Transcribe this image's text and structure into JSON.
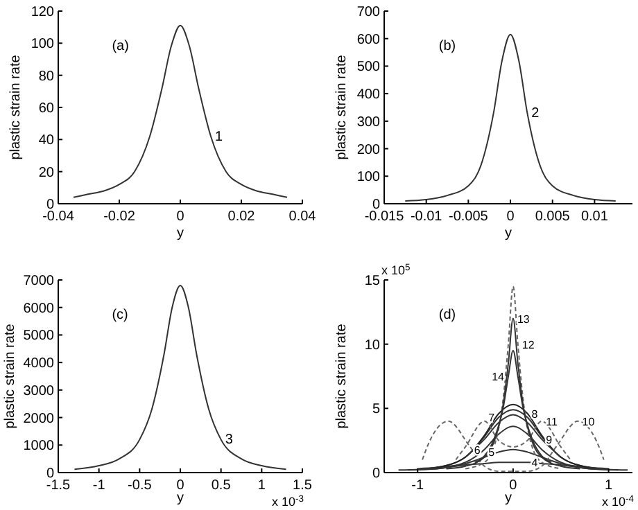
{
  "chart_data": [
    {
      "type": "line",
      "title": "(a)",
      "xlabel": "y",
      "ylabel": "plastic strain rate",
      "xlim": [
        -0.04,
        0.04
      ],
      "xticks": [
        -0.04,
        -0.02,
        0,
        0.02,
        0.04
      ],
      "ylim": [
        0,
        120
      ],
      "yticks": [
        0,
        20,
        40,
        60,
        80,
        100,
        120
      ],
      "series": [
        {
          "color": "#333333",
          "x": [
            -0.035,
            -0.03,
            -0.025,
            -0.02,
            -0.015,
            -0.01,
            -0.006,
            -0.003,
            0,
            0.003,
            0.006,
            0.01,
            0.015,
            0.02,
            0.025,
            0.03,
            0.035
          ],
          "values": [
            4,
            6,
            8,
            12,
            20,
            42,
            72,
            98,
            111,
            98,
            72,
            42,
            20,
            12,
            8,
            6,
            4
          ]
        }
      ],
      "annotations": [
        {
          "text": "1",
          "x": 0.01,
          "y": 42
        }
      ]
    },
    {
      "type": "line",
      "title": "(b)",
      "xlabel": "y",
      "ylabel": "plastic strain rate",
      "xlim": [
        -0.015,
        0.0145
      ],
      "xticks": [
        -0.015,
        -0.01,
        -0.005,
        0,
        0.005,
        0.01
      ],
      "ylim": [
        0,
        700
      ],
      "yticks": [
        0,
        100,
        200,
        300,
        400,
        500,
        600,
        700
      ],
      "series": [
        {
          "color": "#333333",
          "x": [
            -0.0125,
            -0.01,
            -0.0075,
            -0.005,
            -0.0035,
            -0.002,
            -0.001,
            0,
            0.001,
            0.002,
            0.0035,
            0.005,
            0.0075,
            0.01,
            0.0125
          ],
          "values": [
            10,
            15,
            30,
            65,
            140,
            330,
            520,
            615,
            520,
            330,
            140,
            65,
            30,
            15,
            10
          ]
        }
      ],
      "annotations": [
        {
          "text": "2",
          "x": 0.002,
          "y": 330
        }
      ]
    },
    {
      "type": "line",
      "title": "(c)",
      "xlabel": "y",
      "ylabel": "plastic strain rate",
      "xlim": [
        -1.5,
        1.5
      ],
      "xticks": [
        -1.5,
        -1,
        -0.5,
        0,
        0.5,
        1,
        1.5
      ],
      "ylim": [
        0,
        7000
      ],
      "yticks": [
        0,
        1000,
        2000,
        3000,
        4000,
        5000,
        6000,
        7000
      ],
      "series": [
        {
          "color": "#333333",
          "x": [
            -1.3,
            -1,
            -0.75,
            -0.5,
            -0.35,
            -0.2,
            -0.1,
            0,
            0.1,
            0.2,
            0.35,
            0.5,
            0.75,
            1,
            1.3
          ],
          "values": [
            120,
            250,
            500,
            1200,
            2300,
            4300,
            6000,
            6800,
            6000,
            4300,
            2300,
            1200,
            500,
            250,
            120
          ]
        }
      ],
      "annotations": [
        "x 10$^{-3}$",
        {
          "text": "3",
          "x": 0.5,
          "y": 1200
        }
      ]
    },
    {
      "type": "line",
      "title": "(d)",
      "xlabel": "y",
      "ylabel": "plastic strain rate",
      "xlim": [
        -1.35,
        1.25
      ],
      "xticks": [
        -1,
        0,
        1
      ],
      "ylim": [
        0,
        15
      ],
      "yticks": [
        0,
        5,
        10,
        15
      ],
      "series": [
        {
          "color": "#333333",
          "line_style": "solid",
          "x": [
            -1.2,
            -0.8,
            -0.5,
            -0.3,
            -0.15,
            0,
            0.15,
            0.3,
            0.5,
            0.8,
            1.2
          ],
          "values": [
            0.2,
            0.3,
            0.6,
            0.7,
            0.8,
            0.8,
            0.8,
            0.7,
            0.6,
            0.3,
            0.2
          ]
        },
        {
          "color": "#333333",
          "line_style": "solid",
          "x": [
            -1,
            -0.8,
            -0.5,
            -0.3,
            -0.15,
            0,
            0.15,
            0.3,
            0.5,
            0.8,
            1
          ],
          "values": [
            0.3,
            0.4,
            0.7,
            1.2,
            1.6,
            1.8,
            1.6,
            1.2,
            0.7,
            0.4,
            0.3
          ]
        },
        {
          "color": "#333333",
          "line_style": "solid",
          "x": [
            -1.1,
            -0.8,
            -0.5,
            -0.3,
            -0.15,
            0,
            0.15,
            0.3,
            0.5,
            0.8,
            1.1
          ],
          "values": [
            0.2,
            0.3,
            0.8,
            1.8,
            3,
            3.6,
            3,
            1.8,
            0.8,
            0.3,
            0.2
          ]
        },
        {
          "color": "#333333",
          "line_style": "solid",
          "x": [
            -0.9,
            -0.8,
            -0.5,
            -0.3,
            -0.15,
            0,
            0.15,
            0.3,
            0.5,
            0.8,
            0.9
          ],
          "values": [
            0.3,
            0.4,
            1.2,
            2.8,
            4.3,
            4.9,
            4.3,
            2.8,
            1.2,
            0.4,
            0.3
          ]
        },
        {
          "color": "#222222",
          "line_style": "solid",
          "x": [
            -0.8,
            -0.5,
            -0.3,
            -0.15,
            0,
            0.15,
            0.3,
            0.5,
            0.8
          ],
          "values": [
            0.4,
            1.2,
            2.9,
            4.6,
            5.3,
            4.6,
            2.9,
            1.2,
            0.4
          ]
        },
        {
          "color": "#333333",
          "line_style": "solid",
          "x": [
            -0.5,
            -0.3,
            -0.15,
            0,
            0.15,
            0.3,
            0.5
          ],
          "values": [
            1.2,
            2.6,
            3.9,
            4.5,
            3.9,
            2.6,
            1.2
          ]
        },
        {
          "color": "#666666",
          "line_style": "dashed",
          "x": [
            -0.95,
            -0.9,
            -0.68,
            -0.45,
            -0.3,
            -0.15,
            0,
            0.15,
            0.3,
            0.45,
            0.68,
            0.9,
            0.95
          ],
          "values": [
            1,
            2,
            4,
            2,
            0.5,
            0.1,
            0.1,
            0.1,
            0.5,
            2,
            4,
            2,
            1
          ]
        },
        {
          "color": "#666666",
          "line_style": "dashed",
          "x": [
            -0.6,
            -0.5,
            -0.3,
            -0.15,
            0,
            0.15,
            0.3,
            0.5,
            0.6
          ],
          "values": [
            1,
            2,
            4,
            2.5,
            2,
            2.5,
            4,
            2,
            1
          ]
        },
        {
          "color": "#666666",
          "line_style": "dashed",
          "x": [
            -0.5,
            -0.3,
            -0.2,
            -0.1,
            -0.05,
            0,
            0.05,
            0.1,
            0.2,
            0.3,
            0.5
          ],
          "values": [
            0.3,
            0.8,
            2,
            6,
            10,
            14.5,
            10,
            6,
            2,
            0.8,
            0.3
          ]
        },
        {
          "color": "#333333",
          "line_style": "solid",
          "x": [
            -0.7,
            -0.5,
            -0.3,
            -0.2,
            -0.1,
            -0.05,
            0,
            0.05,
            0.1,
            0.2,
            0.3,
            0.5,
            0.7
          ],
          "values": [
            0.3,
            0.5,
            1.2,
            2.4,
            5.5,
            8.5,
            12,
            8.5,
            5.5,
            2.4,
            1.2,
            0.5,
            0.3
          ]
        },
        {
          "color": "#333333",
          "line_style": "solid",
          "x": [
            -0.4,
            -0.3,
            -0.2,
            -0.1,
            -0.05,
            0,
            0.05,
            0.1,
            0.2,
            0.3,
            0.4
          ],
          "values": [
            0.8,
            1.3,
            2.6,
            5.2,
            7.5,
            9.5,
            7.5,
            5.2,
            2.6,
            1.3,
            0.8
          ]
        }
      ],
      "annotations": [
        "x 10$^{5}$",
        "x 10$^{-4}$",
        {
          "text": "4",
          "x": 0.15,
          "y": 0.8
        },
        {
          "text": "5",
          "x": -0.15,
          "y": 1.6
        },
        {
          "text": "6",
          "x": -0.3,
          "y": 1.8
        },
        {
          "text": "7",
          "x": -0.15,
          "y": 4.3
        },
        {
          "text": "8",
          "x": 0.15,
          "y": 4.6
        },
        {
          "text": "9",
          "x": 0.3,
          "y": 2.6
        },
        {
          "text": "10",
          "x": 0.68,
          "y": 4
        },
        {
          "text": "11",
          "x": 0.3,
          "y": 4
        },
        {
          "text": "12",
          "x": 0.05,
          "y": 10
        },
        {
          "text": "13",
          "x": 0,
          "y": 12
        },
        {
          "text": "14",
          "x": -0.05,
          "y": 7.5
        }
      ]
    }
  ]
}
